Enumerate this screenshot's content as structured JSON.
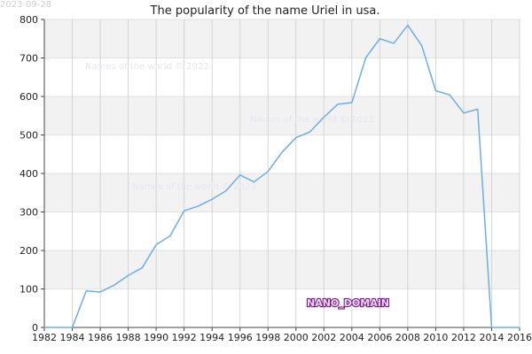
{
  "date_stamp": "2023-09-28",
  "watermark_text": "Names of the world © 2023",
  "logo_text": "NANO_DOMAIN",
  "colors": {
    "line": "#6aaee8",
    "band": "#f2f2f2",
    "grid": "#cccccc",
    "axis": "#444444"
  },
  "chart_data": {
    "type": "line",
    "title": "The popularity of the name Uriel in usa.",
    "xlabel": "",
    "ylabel": "",
    "xlim": [
      1982,
      2016
    ],
    "ylim": [
      0,
      800
    ],
    "x_ticks": [
      1982,
      1984,
      1986,
      1988,
      1990,
      1992,
      1994,
      1996,
      1998,
      2000,
      2002,
      2004,
      2006,
      2008,
      2010,
      2012,
      2014,
      2016
    ],
    "y_ticks": [
      0,
      100,
      200,
      300,
      400,
      500,
      600,
      700,
      800
    ],
    "grid": true,
    "legend": "none",
    "series": [
      {
        "x": [
          1982,
          1983,
          1984,
          1985,
          1986,
          1987,
          1988,
          1989,
          1990,
          1991,
          1992,
          1993,
          1994,
          1995,
          1996,
          1997,
          1998,
          1999,
          2000,
          2001,
          2002,
          2003,
          2004,
          2005,
          2006,
          2007,
          2008,
          2009,
          2010,
          2011,
          2012,
          2013,
          2014,
          2015,
          2016
        ],
        "values": [
          0,
          0,
          0,
          95,
          92,
          110,
          135,
          155,
          215,
          238,
          303,
          315,
          333,
          355,
          396,
          378,
          405,
          455,
          493,
          508,
          546,
          580,
          584,
          701,
          750,
          738,
          785,
          732,
          615,
          604,
          557,
          567,
          0,
          0,
          0
        ]
      }
    ]
  }
}
